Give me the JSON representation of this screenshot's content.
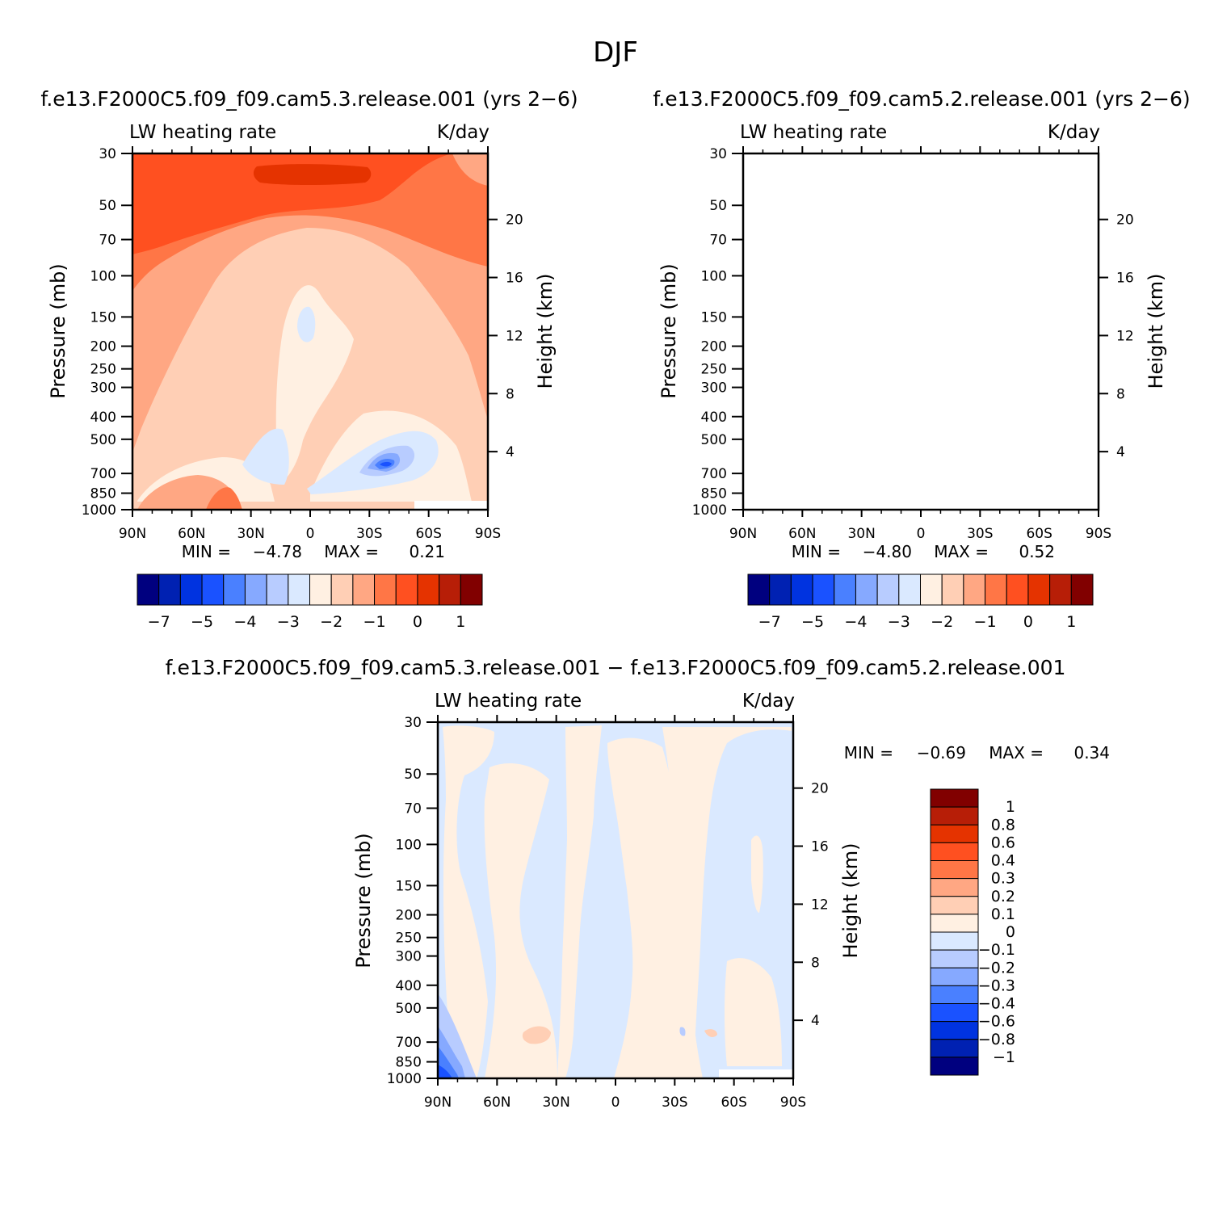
{
  "figure": {
    "title": "DJF"
  },
  "chart_data": [
    {
      "id": "p1",
      "type": "heatmap",
      "case_title": "f.e13.F2000C5.f09_f09.cam5.3.release.001  (yrs 2-6)",
      "field_label": "LW  heating  rate",
      "units": "K/day",
      "ylabel": "Pressure  (mb)",
      "y2label": "Height  (km)",
      "lat_ticks": [
        "90N",
        "60N",
        "30N",
        "0",
        "30S",
        "60S",
        "90S"
      ],
      "lat_range": [
        90,
        -90
      ],
      "pressure_ticks": [
        30,
        50,
        70,
        100,
        150,
        200,
        250,
        300,
        400,
        500,
        700,
        850,
        1000
      ],
      "pressure_range": [
        30,
        1000
      ],
      "height_ticks": [
        20,
        16,
        12,
        8,
        4
      ],
      "min_label": "MIN  =",
      "min_value": "-4.78",
      "max_label": "MAX  =",
      "max_value": "0.21",
      "colorbar_orientation": "horizontal",
      "colorbar_tick_labels": [
        "-7",
        "-5",
        "-4",
        "-3",
        "-2",
        "-1",
        "0",
        "1"
      ],
      "contour_levels": [
        -8,
        -7,
        -6,
        -5,
        -4.5,
        -4,
        -3.5,
        -3,
        -2.5,
        -2,
        -1.5,
        -1,
        -0.5,
        0,
        0.5,
        1
      ],
      "colors": [
        "#00007f",
        "#0021b2",
        "#0033e0",
        "#1a52ff",
        "#4a80ff",
        "#86a9ff",
        "#b8ccff",
        "#dae9ff",
        "#fff0e2",
        "#ffcfb5",
        "#ffa783",
        "#ff7646",
        "#ff5020",
        "#e53300",
        "#b71e07",
        "#810000"
      ]
    },
    {
      "id": "p2",
      "type": "heatmap",
      "case_title": "f.e13.F2000C5.f09_f09.cam5.2.release.001  (yrs 2-6)",
      "field_label": "LW  heating  rate",
      "units": "K/day",
      "ylabel": "Pressure  (mb)",
      "y2label": "Height  (km)",
      "lat_ticks": [
        "90N",
        "60N",
        "30N",
        "0",
        "30S",
        "60S",
        "90S"
      ],
      "lat_range": [
        90,
        -90
      ],
      "pressure_ticks": [
        30,
        50,
        70,
        100,
        150,
        200,
        250,
        300,
        400,
        500,
        700,
        850,
        1000
      ],
      "pressure_range": [
        30,
        1000
      ],
      "height_ticks": [
        20,
        16,
        12,
        8,
        4
      ],
      "min_label": "MIN  =",
      "min_value": "-4.80",
      "max_label": "MAX  =",
      "max_value": "0.52",
      "colorbar_orientation": "horizontal",
      "colorbar_tick_labels": [
        "-7",
        "-5",
        "-4",
        "-3",
        "-2",
        "-1",
        "0",
        "1"
      ],
      "contour_levels": [
        -8,
        -7,
        -6,
        -5,
        -4.5,
        -4,
        -3.5,
        -3,
        -2.5,
        -2,
        -1.5,
        -1,
        -0.5,
        0,
        0.5,
        1
      ],
      "colors": [
        "#00007f",
        "#0021b2",
        "#0033e0",
        "#1a52ff",
        "#4a80ff",
        "#86a9ff",
        "#b8ccff",
        "#dae9ff",
        "#fff0e2",
        "#ffcfb5",
        "#ffa783",
        "#ff7646",
        "#ff5020",
        "#e53300",
        "#b71e07",
        "#810000"
      ]
    },
    {
      "id": "p3",
      "type": "heatmap",
      "case_title": "f.e13.F2000C5.f09_f09.cam5.3.release.001  -  f.e13.F2000C5.f09_f09.cam5.2.release.001",
      "field_label": "LW  heating  rate",
      "units": "K/day",
      "ylabel": "Pressure  (mb)",
      "y2label": "Height  (km)",
      "lat_ticks": [
        "90N",
        "60N",
        "30N",
        "0",
        "30S",
        "60S",
        "90S"
      ],
      "lat_range": [
        90,
        -90
      ],
      "pressure_ticks": [
        30,
        50,
        70,
        100,
        150,
        200,
        250,
        300,
        400,
        500,
        700,
        850,
        1000
      ],
      "pressure_range": [
        30,
        1000
      ],
      "height_ticks": [
        20,
        16,
        12,
        8,
        4
      ],
      "min_label": "MIN  =",
      "min_value": "-0.69",
      "max_label": "MAX  =",
      "max_value": "0.34",
      "colorbar_orientation": "vertical",
      "colorbar_tick_labels": [
        "1",
        "0.8",
        "0.6",
        "0.4",
        "0.3",
        "0.2",
        "0.1",
        "0",
        "-0.1",
        "-0.2",
        "-0.3",
        "-0.4",
        "-0.6",
        "-0.8",
        "-1"
      ],
      "contour_levels": [
        1,
        0.8,
        0.6,
        0.4,
        0.3,
        0.2,
        0.1,
        0,
        -0.1,
        -0.2,
        -0.3,
        -0.4,
        -0.6,
        -0.8,
        -1
      ],
      "colors": [
        "#810000",
        "#b71e07",
        "#e53300",
        "#ff5020",
        "#ff7646",
        "#ffa783",
        "#ffcfb5",
        "#fff0e2",
        "#dae9ff",
        "#b8ccff",
        "#86a9ff",
        "#4a80ff",
        "#1a52ff",
        "#0033e0",
        "#0021b2",
        "#00007f"
      ]
    }
  ]
}
